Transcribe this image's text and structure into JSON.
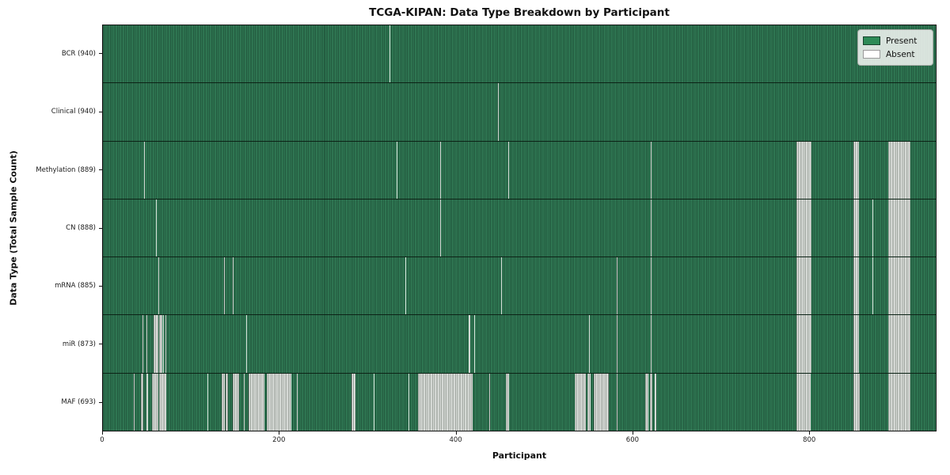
{
  "title": "TCGA-KIPAN: Data Type Breakdown by Participant",
  "axes": {
    "xlabel": "Participant",
    "ylabel": "Data Type (Total Sample Count)",
    "x_ticks": [
      0,
      200,
      400,
      600,
      800
    ],
    "x_max": 944
  },
  "legend": {
    "items": [
      {
        "label": "Present",
        "color": "#2e8b57"
      },
      {
        "label": "Absent",
        "color": "#ffffff"
      }
    ]
  },
  "colors": {
    "present_light": "#338059",
    "present_dark": "#1f5239",
    "absent_fill": "#ebeeeb",
    "absent_edge": "#8f968f",
    "absent_thin": "#d4d9d4",
    "row_divider": "#0d1f14",
    "spine": "#141414"
  },
  "chart_data": {
    "type": "heatmap",
    "title": "TCGA-KIPAN: Data Type Breakdown by Participant",
    "xlabel": "Participant",
    "ylabel": "Data Type (Total Sample Count)",
    "x_range": [
      0,
      944
    ],
    "participants_total": 940,
    "legend": [
      "Present",
      "Absent"
    ],
    "rows": [
      {
        "label": "BCR (940)",
        "name": "BCR",
        "count": 940,
        "absent_ranges": [
          [
            325,
            326
          ]
        ]
      },
      {
        "label": "Clinical (940)",
        "name": "Clinical",
        "count": 940,
        "absent_ranges": [
          [
            448,
            449
          ]
        ]
      },
      {
        "label": "Methylation (889)",
        "name": "Methylation",
        "count": 889,
        "absent_ranges": [
          [
            47,
            48
          ],
          [
            333,
            334
          ],
          [
            382,
            383
          ],
          [
            459,
            460
          ],
          [
            621,
            622
          ],
          [
            786,
            803
          ],
          [
            851,
            857
          ],
          [
            890,
            915
          ]
        ]
      },
      {
        "label": "CN (888)",
        "name": "CN",
        "count": 888,
        "absent_ranges": [
          [
            60,
            61
          ],
          [
            382,
            383
          ],
          [
            621,
            622
          ],
          [
            786,
            803
          ],
          [
            851,
            857
          ],
          [
            872,
            873
          ],
          [
            890,
            915
          ]
        ]
      },
      {
        "label": "mRNA (885)",
        "name": "mRNA",
        "count": 885,
        "absent_ranges": [
          [
            63,
            64
          ],
          [
            137,
            138
          ],
          [
            147,
            148
          ],
          [
            343,
            344
          ],
          [
            451,
            452
          ],
          [
            582,
            583
          ],
          [
            621,
            622
          ],
          [
            786,
            803
          ],
          [
            851,
            857
          ],
          [
            872,
            873
          ],
          [
            890,
            915
          ]
        ]
      },
      {
        "label": "miR (873)",
        "name": "miR",
        "count": 873,
        "absent_ranges": [
          [
            45,
            46
          ],
          [
            49,
            50
          ],
          [
            57,
            63
          ],
          [
            64,
            67
          ],
          [
            68,
            69
          ],
          [
            71,
            72
          ],
          [
            162,
            163
          ],
          [
            415,
            416
          ],
          [
            421,
            422
          ],
          [
            551,
            552
          ],
          [
            582,
            583
          ],
          [
            621,
            622
          ],
          [
            786,
            803
          ],
          [
            851,
            857
          ],
          [
            890,
            915
          ]
        ]
      },
      {
        "label": "MAF (693)",
        "name": "MAF",
        "count": 693,
        "absent_ranges": [
          [
            35,
            36
          ],
          [
            43,
            46
          ],
          [
            49,
            51
          ],
          [
            56,
            63
          ],
          [
            64,
            72
          ],
          [
            118,
            119
          ],
          [
            135,
            138
          ],
          [
            139,
            142
          ],
          [
            147,
            154
          ],
          [
            160,
            161
          ],
          [
            165,
            183
          ],
          [
            186,
            214
          ],
          [
            220,
            221
          ],
          [
            282,
            286
          ],
          [
            307,
            308
          ],
          [
            346,
            347
          ],
          [
            357,
            419
          ],
          [
            438,
            439
          ],
          [
            457,
            460
          ],
          [
            535,
            547
          ],
          [
            549,
            553
          ],
          [
            556,
            573
          ],
          [
            582,
            583
          ],
          [
            615,
            618
          ],
          [
            620,
            623
          ],
          [
            625,
            627
          ],
          [
            786,
            802
          ],
          [
            851,
            858
          ],
          [
            890,
            915
          ]
        ]
      }
    ]
  }
}
